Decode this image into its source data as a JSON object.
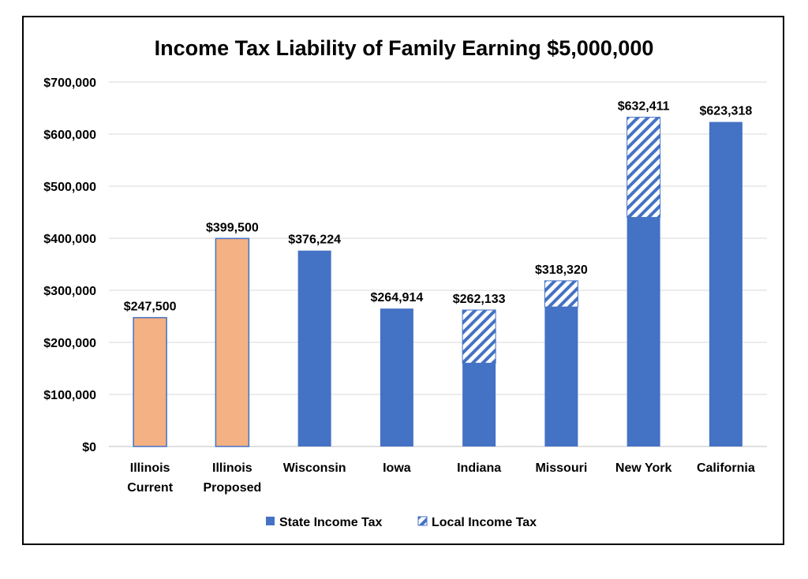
{
  "chart_data": {
    "type": "bar",
    "title": "Income Tax Liability of Family Earning $5,000,000",
    "categories": [
      [
        "Illinois",
        "Current"
      ],
      [
        "Illinois",
        "Proposed"
      ],
      [
        "Wisconsin"
      ],
      [
        "Iowa"
      ],
      [
        "Indiana"
      ],
      [
        "Missouri"
      ],
      [
        "New York"
      ],
      [
        "California"
      ]
    ],
    "series": [
      {
        "name": "State Income Tax",
        "color": "#4472C4",
        "values": [
          247500,
          399500,
          376224,
          264914,
          160000,
          268000,
          440000,
          623318
        ]
      },
      {
        "name": "Local Income Tax",
        "color": "#4472C4",
        "pattern": "diagonal-hatch",
        "values": [
          0,
          0,
          0,
          0,
          102133,
          50320,
          192411,
          0
        ]
      }
    ],
    "totals": [
      "$247,500",
      "$399,500",
      "$376,224",
      "$264,914",
      "$262,133",
      "$318,320",
      "$632,411",
      "$623,318"
    ],
    "highlight": {
      "indices": [
        0,
        1
      ],
      "fill": "#F4B183",
      "stroke": "#4472C4"
    },
    "ylim": [
      0,
      700000
    ],
    "yticks": [
      0,
      100000,
      200000,
      300000,
      400000,
      500000,
      600000,
      700000
    ],
    "ytick_labels": [
      "$0",
      "$100,000",
      "$200,000",
      "$300,000",
      "$400,000",
      "$500,000",
      "$600,000",
      "$700,000"
    ],
    "grid": true,
    "legend_position": "bottom",
    "xlabel": "",
    "ylabel": ""
  }
}
